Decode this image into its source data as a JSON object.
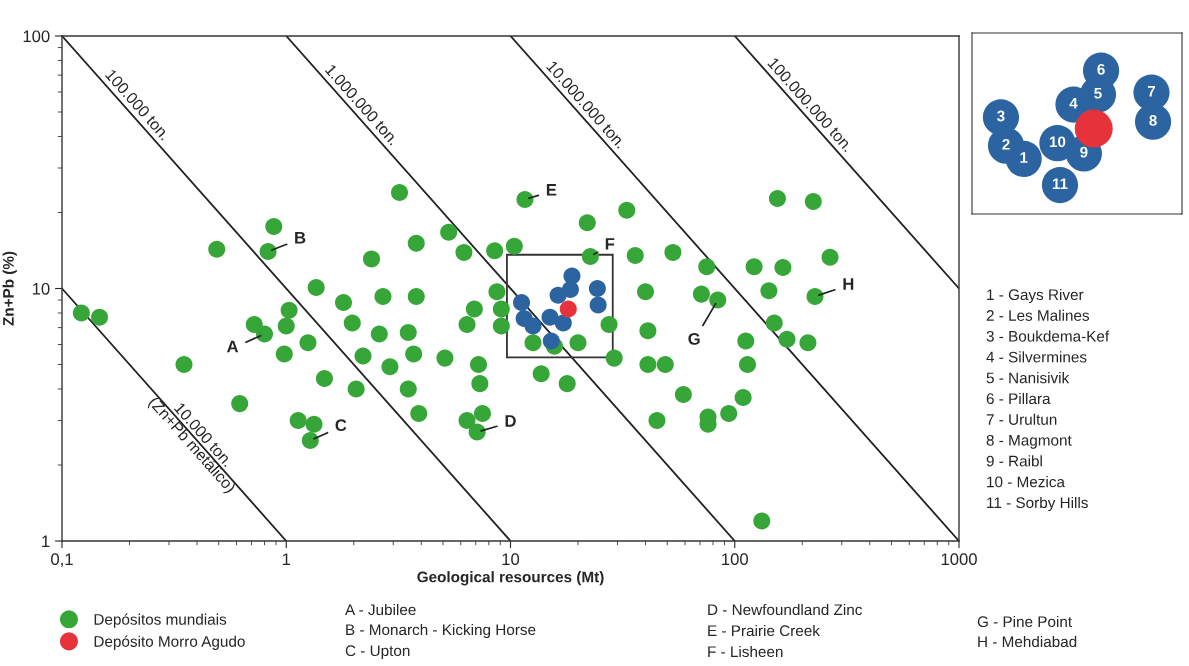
{
  "chart_data": [
    {
      "type": "scatter",
      "xlabel": "Geological resources (Mt)",
      "ylabel": "Zn+Pb (%)",
      "log": "xy",
      "marker": "circle",
      "legend": "bottom",
      "xlim": [
        0.1,
        1000
      ],
      "xticks": [
        {
          "value": 0.1,
          "label": "0,1"
        },
        1,
        10,
        100,
        1000
      ],
      "ylim": [
        1,
        100
      ],
      "yticks": [
        1,
        10,
        100
      ],
      "series": [
        {
          "type": "line",
          "marker": "none",
          "color": "#222222",
          "x": [
            0.1,
            1
          ],
          "values": [
            10,
            1
          ]
        },
        {
          "type": "line",
          "marker": "none",
          "color": "#222222",
          "x": [
            0.1,
            10
          ],
          "values": [
            100,
            1
          ]
        },
        {
          "type": "line",
          "marker": "none",
          "color": "#222222",
          "x": [
            1,
            100
          ],
          "values": [
            100,
            1
          ]
        },
        {
          "type": "line",
          "marker": "none",
          "color": "#222222",
          "x": [
            10,
            1000
          ],
          "values": [
            100,
            1
          ]
        },
        {
          "type": "line",
          "marker": "none",
          "color": "#222222",
          "x": [
            100,
            1000
          ],
          "values": [
            100,
            10
          ]
        },
        {
          "name": "Depósitos mundiais",
          "color": "#36a638",
          "x": [
            0.122,
            0.147,
            0.35,
            0.49,
            0.62,
            0.72,
            0.8,
            0.88,
            0.83,
            1.03,
            1.0,
            0.98,
            1.25,
            1.36,
            1.8,
            1.97,
            2.2,
            1.48,
            2.05,
            1.13,
            1.33,
            1.28,
            3.2,
            3.8,
            5.3,
            2.4,
            6.2,
            8.5,
            10.4,
            11.6,
            2.7,
            3.8,
            2.6,
            3.5,
            6.9,
            6.4,
            8.7,
            9.1,
            9.1,
            2.9,
            3.7,
            5.1,
            7.2,
            7.3,
            3.5,
            3.9,
            6.4,
            7.5,
            7.1,
            12.6,
            15.7,
            20,
            13.7,
            17.9,
            27.5,
            22,
            33,
            22.7,
            36,
            53,
            75,
            122,
            164,
            155,
            224,
            266,
            40,
            71,
            84,
            142,
            228,
            41,
            150,
            171,
            212,
            112,
            29,
            41,
            49,
            114,
            59,
            109,
            94,
            45,
            76,
            76,
            132
          ],
          "values": [
            8.0,
            7.7,
            5.0,
            14.3,
            3.5,
            7.2,
            6.6,
            17.6,
            14.0,
            8.2,
            7.1,
            5.5,
            6.1,
            10.1,
            8.8,
            7.3,
            5.4,
            4.4,
            4.0,
            3.0,
            2.9,
            2.5,
            24,
            15.1,
            16.7,
            13.1,
            13.9,
            14.1,
            14.7,
            22.5,
            9.3,
            9.3,
            6.6,
            6.7,
            8.3,
            7.2,
            9.7,
            8.3,
            7.1,
            4.9,
            5.5,
            5.3,
            5.0,
            4.2,
            4.0,
            3.2,
            3.0,
            3.2,
            2.7,
            6.1,
            5.9,
            6.1,
            4.6,
            4.2,
            7.2,
            18.2,
            20.4,
            13.4,
            13.5,
            13.9,
            12.2,
            12.2,
            12.1,
            22.7,
            22.1,
            13.3,
            9.7,
            9.5,
            9.0,
            9.8,
            9.3,
            6.8,
            7.3,
            6.3,
            6.1,
            6.2,
            5.3,
            5.0,
            5.0,
            5.0,
            3.8,
            3.7,
            3.2,
            3.0,
            3.1,
            2.9,
            1.2
          ]
        },
        {
          "color": "#2b64a0",
          "x": [
            12.6,
            11.5,
            11.2,
            16.3,
            18.5,
            18.8,
            24.4,
            24.6,
            17.2,
            15.0,
            15.2
          ],
          "values": [
            7.1,
            7.6,
            8.8,
            9.4,
            9.9,
            11.2,
            10.0,
            8.6,
            7.3,
            7.7,
            6.2
          ]
        },
        {
          "name": "Depósito Morro Agudo",
          "color": "#e5323b",
          "x": [
            18.1
          ],
          "values": [
            8.3
          ]
        }
      ],
      "annotations": [
        {
          "text": "10.000 ton.\n(Zn+Pb metálico)",
          "x": 0.4,
          "y": 2.5
        },
        {
          "text": "100.000 ton.",
          "x": 0.2,
          "y": 50
        },
        {
          "text": "1.000.000 ton.",
          "x": 2,
          "y": 50
        },
        {
          "text": "10.000.000 ton.",
          "x": 20,
          "y": 50
        },
        {
          "text": "100.000.000 ton.",
          "x": 200,
          "y": 50
        },
        {
          "text": "A",
          "x": 0.8,
          "y": 6.6
        },
        {
          "text": "B",
          "x": 0.83,
          "y": 14.0
        },
        {
          "text": "C",
          "x": 1.28,
          "y": 2.5
        },
        {
          "text": "D",
          "x": 7.1,
          "y": 2.7
        },
        {
          "text": "E",
          "x": 11.6,
          "y": 22.5
        },
        {
          "text": "F",
          "x": 22.7,
          "y": 13.4
        },
        {
          "text": "G",
          "x": 84,
          "y": 9.0
        },
        {
          "text": "H",
          "x": 228,
          "y": 9.3
        },
        "A - Jubilee",
        "B - Monarch - Kicking Horse",
        "C - Upton",
        "D - Newfoundland Zinc",
        "E - Prairie Creek",
        "F - Lisheen",
        "G - Pine Point",
        "H - Mehdiabad",
        "1 - Gays River",
        "2 - Les Malines",
        "3 - Boukdema-Kef",
        "4 - Silvermines",
        "5 - Nanisivik",
        "6 - Pillara",
        "7 - Urultun",
        "8 - Magmont",
        "9 - Raibl",
        "10 - Mezica",
        "11 - Sorby Hills"
      ]
    },
    {
      "type": "other",
      "categories": [
        "1",
        "2",
        "3",
        "4",
        "5",
        "6",
        "7",
        "8",
        "9",
        "10",
        "11"
      ]
    }
  ]
}
